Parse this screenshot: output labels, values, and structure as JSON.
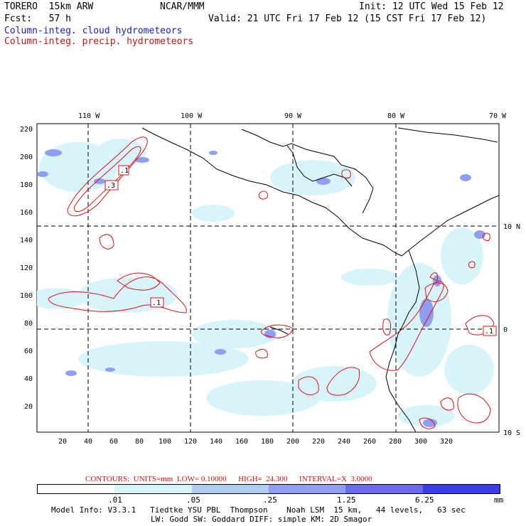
{
  "header": {
    "model": "TORERO  15km ARW",
    "org": "NCAR/MMM",
    "init": "Init: 12 UTC Wed 15 Feb 12",
    "fcst": "Fcst:   57 h",
    "valid": "Valid: 21 UTC Fri 17 Feb 12 (15 CST Fri 17 Feb 12)",
    "field_cloud": "Column-integ. cloud hydrometeors",
    "field_precip": "Column-integ. precip. hydrometeors"
  },
  "axes": {
    "top_lon": [
      "110 W",
      "100 W",
      "90 W",
      "80 W",
      "70 W"
    ],
    "right_lat": [
      "10 N",
      "0",
      "10 S"
    ],
    "left_ticks": [
      "220",
      "200",
      "180",
      "160",
      "140",
      "120",
      "100",
      "80",
      "60",
      "40",
      "20"
    ],
    "bottom_ticks": [
      "20",
      "40",
      "60",
      "80",
      "100",
      "120",
      "140",
      "160",
      "180",
      "200",
      "220",
      "240",
      "260",
      "280",
      "300",
      "320"
    ]
  },
  "contour_labels": [
    ".1",
    ".3",
    ".1",
    ".1"
  ],
  "contours_text": "CONTOURS:  UNITS=mm  LOW= 0.10000      HIGH=  24.300      INTERVAL=X  3.0000",
  "colorbar": {
    "colors": [
      "#ffffff",
      "#d8f4fb",
      "#b0cdf2",
      "#8f9ef0",
      "#6a6aee",
      "#3c3cf0"
    ],
    "labels": [
      ".01",
      ".05",
      ".25",
      "1.25",
      "6.25"
    ],
    "units": "mm"
  },
  "model_info": {
    "line1": "Model Info: V3.3.1   Tiedtke YSU PBL  Thompson    Noah LSM  15 km,   44 levels,   63 sec",
    "line2": "LW: Godd SW: Goddard DIFF: simple KM: 2D Smagor"
  },
  "colors": {
    "cloud": "#8fa0f0",
    "precip": "#e01010",
    "coast": "#000000"
  }
}
